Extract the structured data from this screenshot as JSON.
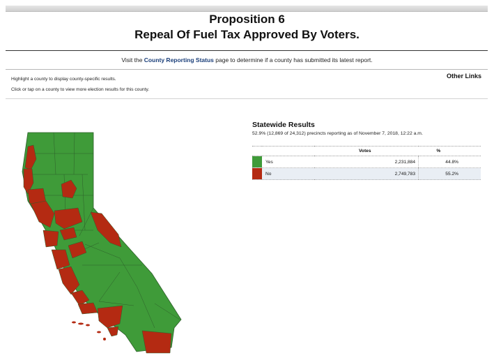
{
  "header": {
    "title_line1": "Proposition 6",
    "title_line2": "Repeal Of Fuel Tax Approved By Voters."
  },
  "notice": {
    "prefix": "Visit the ",
    "link_label": "County Reporting Status",
    "suffix": " page to determine if a county has submitted its latest report."
  },
  "instructions": {
    "line1": "Highlight a county to display county-specific results.",
    "line2": "Click or tap on a county to view more election results for this county."
  },
  "other_links_label": "Other Links",
  "statewide": {
    "title": "Statewide Results",
    "subtitle": "52.9% (12,869 of 24,312) precincts reporting as of November 7, 2018, 12:22 a.m.",
    "columns": {
      "votes": "Votes",
      "percent": "%"
    },
    "rows": [
      {
        "label": "Yes",
        "votes": "2,231,884",
        "percent": "44.8%",
        "color": "#3f9b39"
      },
      {
        "label": "No",
        "votes": "2,749,783",
        "percent": "55.2%",
        "color": "#b42a12"
      }
    ]
  },
  "map": {
    "colors": {
      "yes": "#3f9b39",
      "no": "#b42a12",
      "border": "#2d5e2a"
    }
  }
}
